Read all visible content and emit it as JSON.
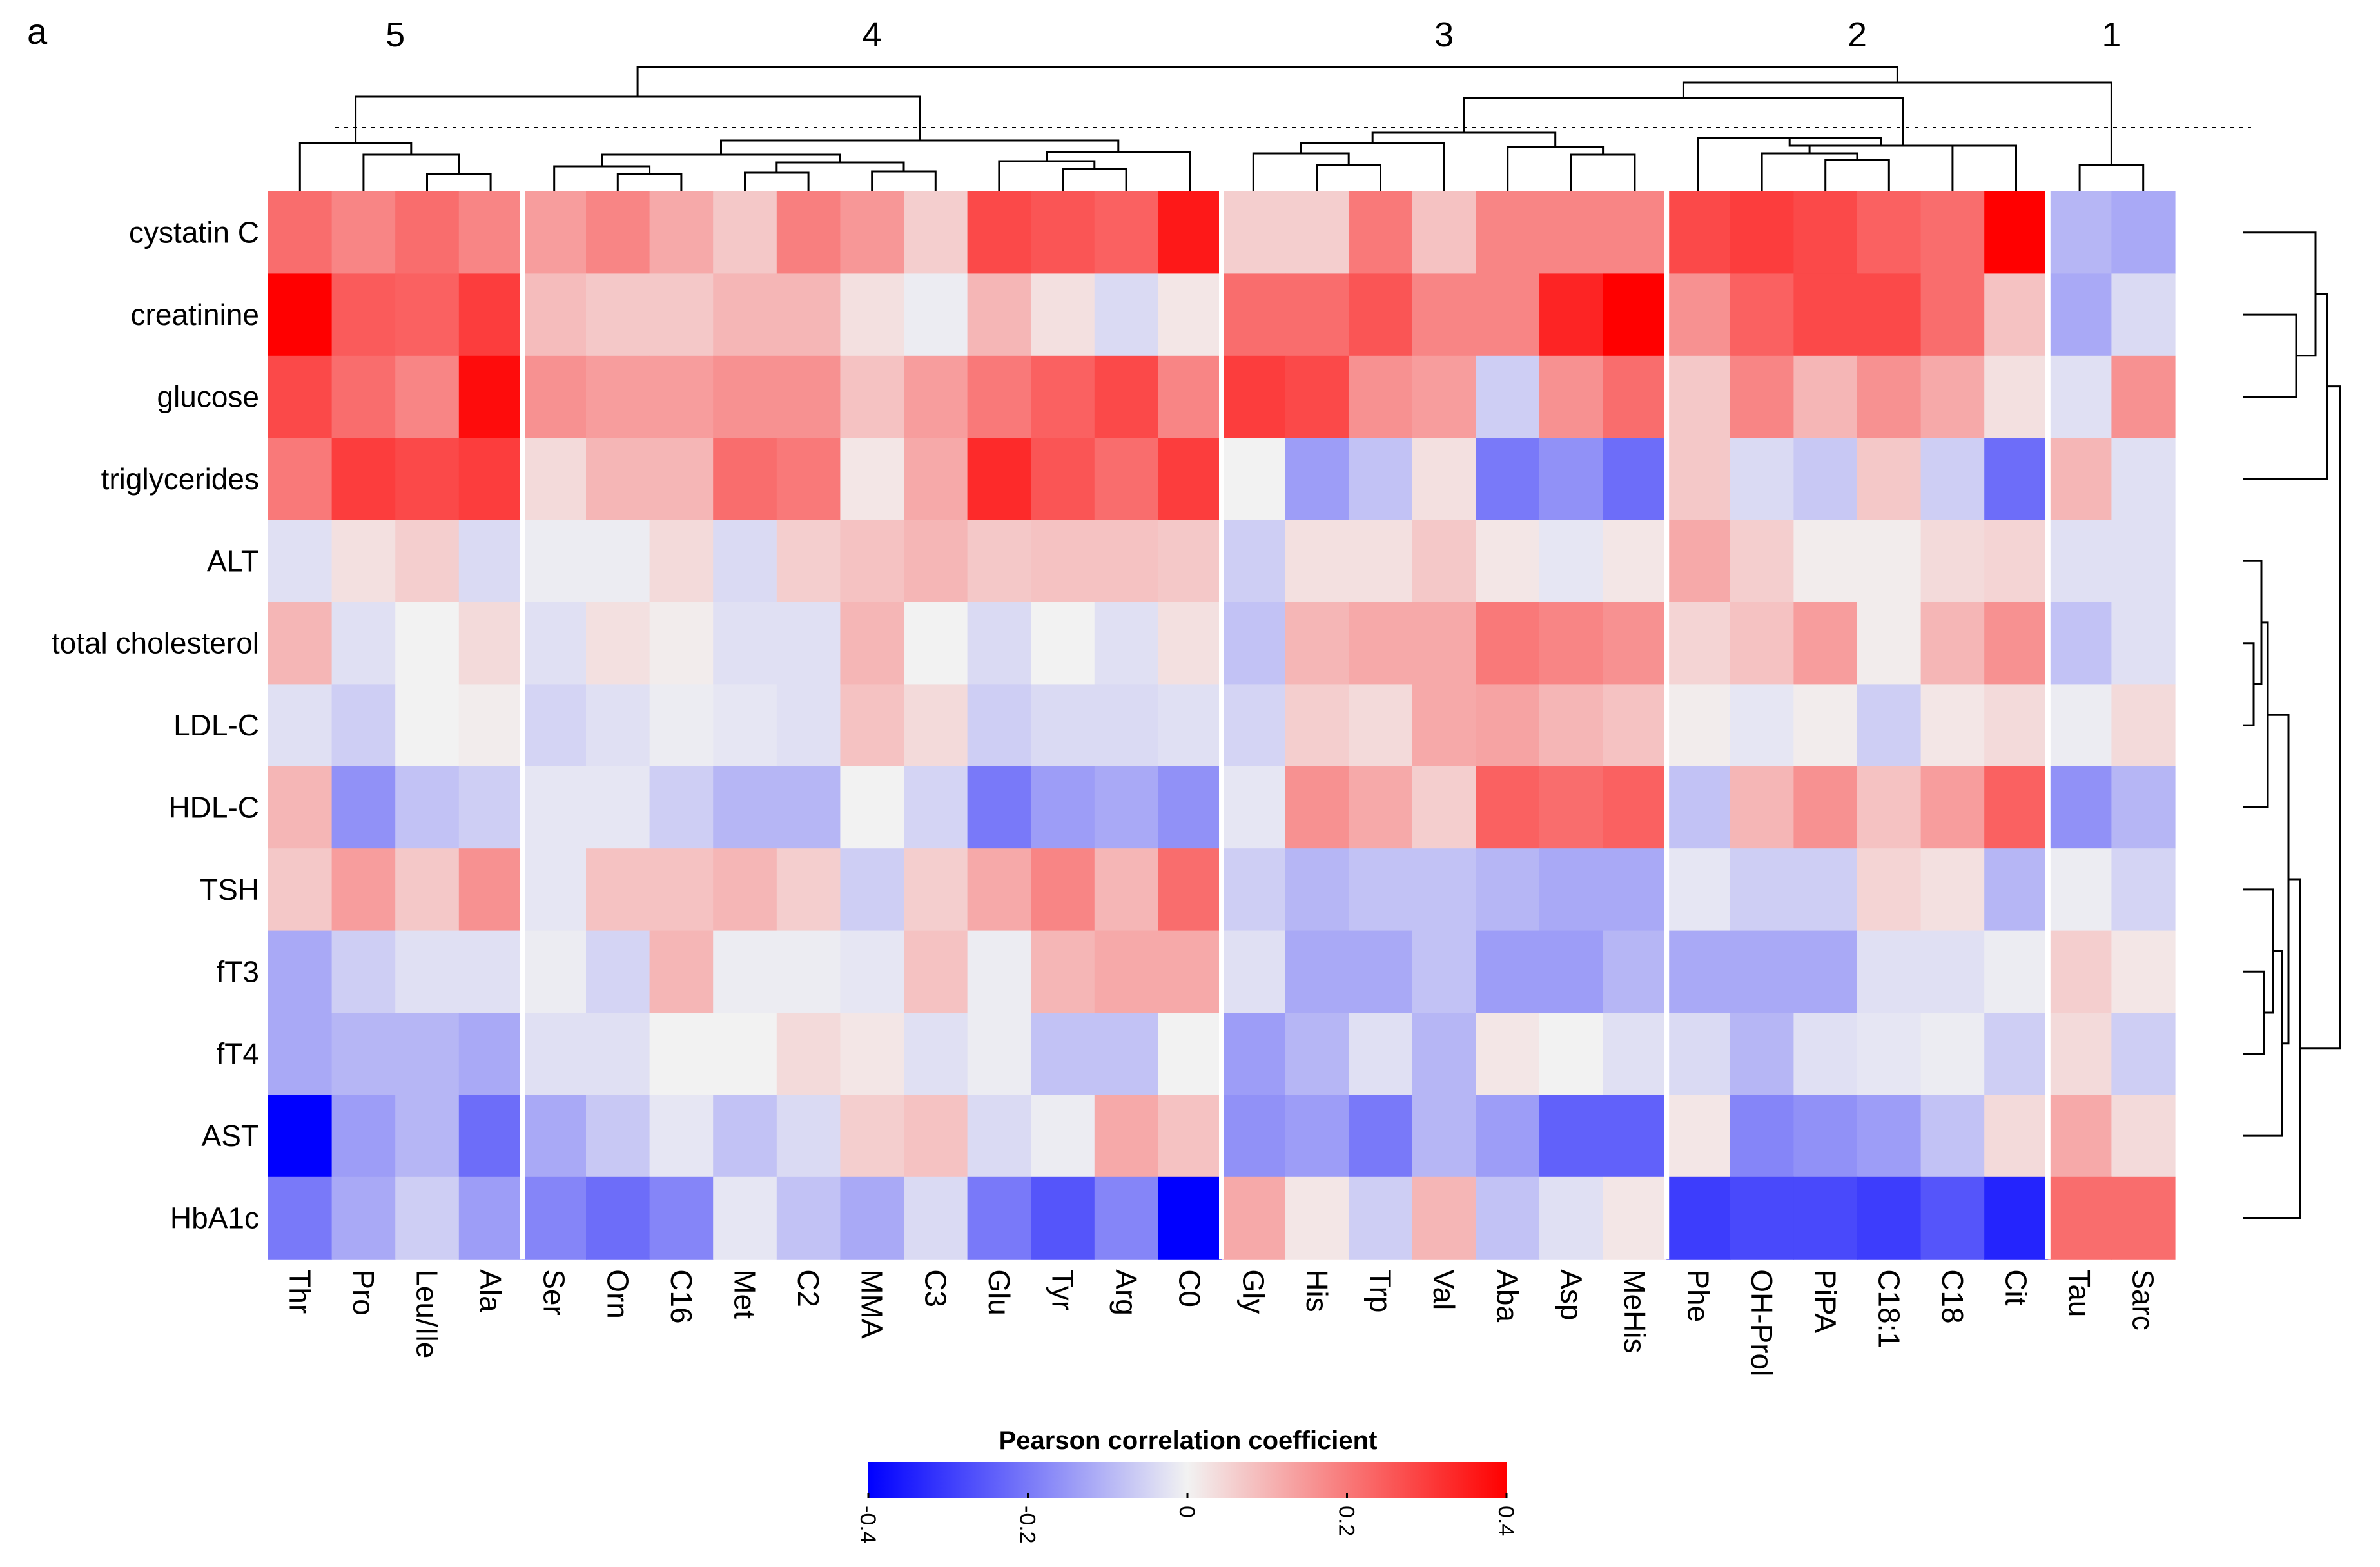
{
  "panel_label": "a",
  "chart_data": {
    "type": "heatmap",
    "title": "",
    "legend": {
      "title": "Pearson correlation coefficient",
      "ticks": [
        "-0.4",
        "-0.2",
        "0",
        "0.2",
        "0.4"
      ],
      "range": [
        -0.4,
        0.4
      ],
      "colors": {
        "low": "#0000FF",
        "mid": "#F2F2F2",
        "high": "#FF0000"
      }
    },
    "rows": [
      "cystatin C",
      "creatinine",
      "glucose",
      "triglycerides",
      "ALT",
      "total cholesterol",
      "LDL-C",
      "HDL-C",
      "TSH",
      "fT3",
      "fT4",
      "AST",
      "HbA1c"
    ],
    "columns": [
      "Thr",
      "Pro",
      "Leu/Ile",
      "Ala",
      "Ser",
      "Orn",
      "C16",
      "Met",
      "C2",
      "MMA",
      "C3",
      "Glu",
      "Tyr",
      "Arg",
      "C0",
      "Gly",
      "His",
      "Trp",
      "Val",
      "Aba",
      "Asp",
      "MeHis",
      "Phe",
      "OH-Prol",
      "PiPA",
      "C18:1",
      "C18",
      "Cit",
      "Tau",
      "Sarc"
    ],
    "clusters": [
      {
        "label": "5",
        "columns": [
          "Thr",
          "Pro",
          "Leu/Ile",
          "Ala"
        ]
      },
      {
        "label": "4",
        "columns": [
          "Ser",
          "Orn",
          "C16",
          "Met",
          "C2",
          "MMA",
          "C3",
          "Glu",
          "Tyr",
          "Arg",
          "C0"
        ]
      },
      {
        "label": "3",
        "columns": [
          "Gly",
          "His",
          "Trp",
          "Val",
          "Aba",
          "Asp",
          "MeHis"
        ]
      },
      {
        "label": "2",
        "columns": [
          "Phe",
          "OH-Prol",
          "PiPA",
          "C18:1",
          "C18",
          "Cit"
        ]
      },
      {
        "label": "1",
        "columns": [
          "Tau",
          "Sarc"
        ]
      }
    ],
    "values": [
      [
        0.22,
        0.18,
        0.22,
        0.18,
        0.14,
        0.18,
        0.12,
        0.07,
        0.19,
        0.15,
        0.06,
        0.28,
        0.26,
        0.24,
        0.36,
        0.06,
        0.06,
        0.2,
        0.08,
        0.18,
        0.18,
        0.18,
        0.28,
        0.3,
        0.28,
        0.24,
        0.22,
        0.4,
        -0.1,
        -0.12
      ],
      [
        0.4,
        0.25,
        0.24,
        0.3,
        0.09,
        0.07,
        0.07,
        0.1,
        0.1,
        0.03,
        -0.01,
        0.1,
        0.03,
        -0.04,
        0.02,
        0.22,
        0.22,
        0.26,
        0.18,
        0.18,
        0.34,
        0.4,
        0.16,
        0.24,
        0.28,
        0.28,
        0.22,
        0.08,
        -0.12,
        -0.04
      ],
      [
        0.28,
        0.22,
        0.18,
        0.38,
        0.16,
        0.14,
        0.14,
        0.16,
        0.16,
        0.08,
        0.14,
        0.2,
        0.24,
        0.28,
        0.18,
        0.3,
        0.28,
        0.16,
        0.14,
        -0.06,
        0.16,
        0.22,
        0.07,
        0.18,
        0.1,
        0.16,
        0.12,
        0.03,
        -0.03,
        0.16
      ],
      [
        0.2,
        0.3,
        0.28,
        0.3,
        0.04,
        0.1,
        0.1,
        0.22,
        0.2,
        0.02,
        0.12,
        0.33,
        0.26,
        0.22,
        0.3,
        0.0,
        -0.14,
        -0.08,
        0.03,
        -0.2,
        -0.16,
        -0.22,
        0.07,
        -0.04,
        -0.07,
        0.07,
        -0.06,
        -0.22,
        0.1,
        -0.03
      ],
      [
        -0.03,
        0.03,
        0.06,
        -0.04,
        -0.01,
        -0.01,
        0.04,
        -0.04,
        0.06,
        0.08,
        0.1,
        0.07,
        0.08,
        0.08,
        0.07,
        -0.06,
        0.03,
        0.03,
        0.07,
        0.02,
        -0.02,
        0.02,
        0.12,
        0.06,
        0.01,
        0.01,
        0.04,
        0.05,
        -0.03,
        -0.03
      ],
      [
        0.1,
        -0.03,
        0.0,
        0.04,
        -0.03,
        0.03,
        0.01,
        -0.03,
        -0.03,
        0.1,
        0.0,
        -0.04,
        0.0,
        -0.03,
        0.03,
        -0.08,
        0.1,
        0.12,
        0.12,
        0.2,
        0.18,
        0.16,
        0.05,
        0.08,
        0.14,
        0.01,
        0.1,
        0.16,
        -0.08,
        -0.03
      ],
      [
        -0.03,
        -0.06,
        0.0,
        0.01,
        -0.05,
        -0.03,
        -0.01,
        -0.02,
        -0.03,
        0.08,
        0.04,
        -0.06,
        -0.04,
        -0.04,
        -0.03,
        -0.05,
        0.06,
        0.04,
        0.12,
        0.13,
        0.1,
        0.08,
        0.01,
        -0.02,
        0.01,
        -0.06,
        0.02,
        0.04,
        -0.01,
        0.04
      ],
      [
        0.1,
        -0.16,
        -0.08,
        -0.06,
        -0.02,
        -0.02,
        -0.06,
        -0.1,
        -0.1,
        0.0,
        -0.05,
        -0.2,
        -0.14,
        -0.12,
        -0.16,
        -0.02,
        0.16,
        0.12,
        0.06,
        0.24,
        0.22,
        0.24,
        -0.08,
        0.1,
        0.16,
        0.08,
        0.14,
        0.24,
        -0.16,
        -0.1
      ],
      [
        0.07,
        0.14,
        0.07,
        0.16,
        -0.02,
        0.08,
        0.08,
        0.1,
        0.06,
        -0.06,
        0.06,
        0.12,
        0.18,
        0.1,
        0.22,
        -0.06,
        -0.1,
        -0.08,
        -0.08,
        -0.1,
        -0.12,
        -0.12,
        -0.02,
        -0.06,
        -0.06,
        0.05,
        0.03,
        -0.1,
        -0.01,
        -0.05
      ],
      [
        -0.12,
        -0.06,
        -0.03,
        -0.03,
        -0.01,
        -0.05,
        0.1,
        -0.01,
        -0.01,
        -0.02,
        0.08,
        -0.01,
        0.1,
        0.12,
        0.12,
        -0.03,
        -0.12,
        -0.12,
        -0.08,
        -0.14,
        -0.14,
        -0.1,
        -0.12,
        -0.12,
        -0.12,
        -0.03,
        -0.03,
        -0.01,
        0.06,
        0.02
      ],
      [
        -0.12,
        -0.1,
        -0.1,
        -0.12,
        -0.03,
        -0.03,
        0.0,
        0.0,
        0.04,
        0.02,
        -0.03,
        -0.01,
        -0.08,
        -0.08,
        0.0,
        -0.14,
        -0.1,
        -0.03,
        -0.1,
        0.02,
        0.0,
        -0.03,
        -0.04,
        -0.1,
        -0.03,
        -0.02,
        -0.01,
        -0.06,
        0.04,
        -0.06
      ],
      [
        -0.4,
        -0.14,
        -0.1,
        -0.22,
        -0.12,
        -0.07,
        -0.02,
        -0.08,
        -0.04,
        0.06,
        0.08,
        -0.04,
        -0.01,
        0.12,
        0.08,
        -0.16,
        -0.14,
        -0.2,
        -0.1,
        -0.14,
        -0.24,
        -0.24,
        0.02,
        -0.18,
        -0.16,
        -0.14,
        -0.08,
        0.04,
        0.12,
        0.04
      ],
      [
        -0.2,
        -0.12,
        -0.06,
        -0.14,
        -0.18,
        -0.22,
        -0.18,
        -0.02,
        -0.08,
        -0.12,
        -0.04,
        -0.2,
        -0.26,
        -0.18,
        -0.4,
        0.12,
        0.02,
        -0.06,
        0.1,
        -0.08,
        -0.03,
        0.02,
        -0.3,
        -0.28,
        -0.28,
        -0.3,
        -0.26,
        -0.34,
        0.22,
        0.22
      ]
    ]
  }
}
